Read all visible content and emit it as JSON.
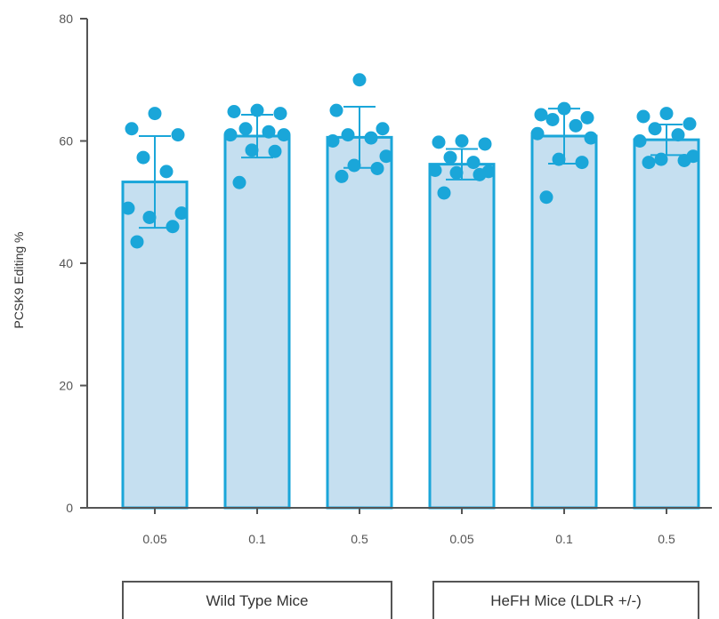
{
  "chart_data": {
    "type": "bar",
    "ylabel": "PCSK9 Editing %",
    "ylim": [
      0,
      80
    ],
    "yticks": [
      0,
      20,
      40,
      60,
      80
    ],
    "grid": false,
    "colors": {
      "bar_fill": "#c5dff0",
      "bar_stroke": "#1aa6d9",
      "dot": "#1aa6d9",
      "axis": "#555555"
    },
    "categories": [
      "0.05",
      "0.1",
      "0.5",
      "0.05",
      "0.1",
      "0.5"
    ],
    "groups": [
      {
        "label": "Wild Type Mice",
        "category_indices": [
          0,
          1,
          2
        ]
      },
      {
        "label": "HeFH Mice (LDLR +/-)",
        "category_indices": [
          3,
          4,
          5
        ]
      }
    ],
    "values": [
      53.3,
      60.8,
      60.6,
      56.2,
      60.8,
      60.2
    ],
    "error": [
      7.5,
      3.5,
      5.0,
      2.5,
      4.5,
      2.5
    ],
    "points": [
      [
        64.5,
        62.0,
        61.0,
        57.3,
        55.0,
        49.0,
        48.2,
        47.5,
        46.0,
        43.5
      ],
      [
        65.0,
        64.8,
        64.5,
        62.0,
        61.5,
        61.0,
        61.0,
        58.5,
        58.3,
        53.2
      ],
      [
        70.0,
        65.0,
        62.0,
        61.0,
        60.5,
        60.0,
        57.5,
        56.0,
        55.5,
        54.2
      ],
      [
        60.0,
        59.8,
        59.5,
        57.3,
        56.5,
        55.2,
        55.0,
        54.8,
        54.5,
        51.5
      ],
      [
        65.3,
        64.3,
        63.8,
        63.5,
        62.5,
        61.2,
        60.5,
        57.0,
        56.5,
        50.8
      ],
      [
        64.5,
        64.0,
        62.8,
        62.0,
        61.0,
        60.0,
        57.5,
        57.0,
        56.8,
        56.5
      ]
    ]
  }
}
